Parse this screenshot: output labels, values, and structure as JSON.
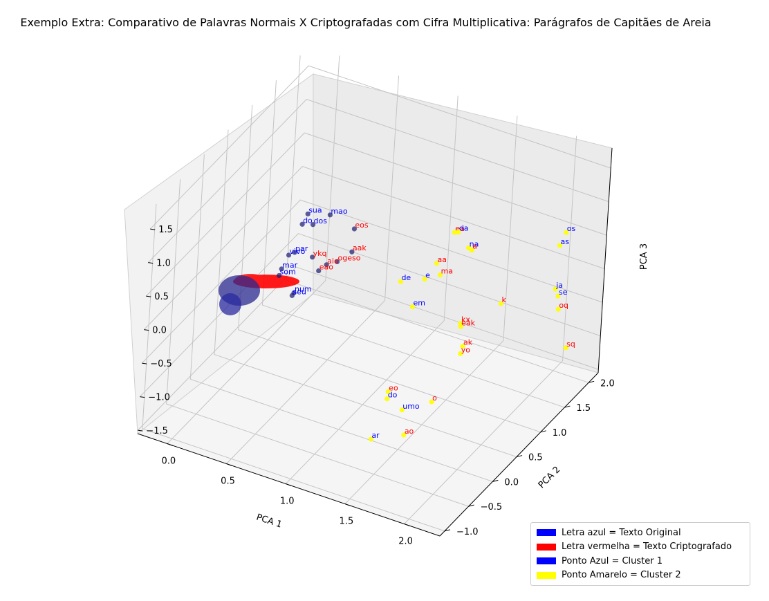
{
  "chart_data": {
    "type": "scatter",
    "projection": "3d",
    "title": "Exemplo Extra: Comparativo de Palavras Normais X Criptografadas com Cifra Multiplicativa: Parágrafos de Capitães de Areia",
    "xlabel": "PCA 1",
    "ylabel": "PCA 2",
    "zlabel": "PCA 3",
    "xticks": [
      "0.0",
      "0.5",
      "1.0",
      "1.5",
      "2.0"
    ],
    "yticks": [
      "−1.0",
      "−0.5",
      "0.0",
      "0.5",
      "1.0",
      "1.5",
      "2.0"
    ],
    "zticks": [
      "−1.5",
      "−1.0",
      "−0.5",
      "0.0",
      "0.5",
      "1.0",
      "1.5"
    ],
    "xlim": [
      -0.25,
      2.3
    ],
    "ylim": [
      -1.1,
      2.2
    ],
    "zlim": [
      -1.55,
      1.8
    ],
    "grid": true,
    "legend_position": "lower-right",
    "legend": [
      {
        "label": "Letra azul = Texto Original",
        "color": "#0000ff"
      },
      {
        "label": "Letra vermelha = Texto Criptografado",
        "color": "#ff0000"
      },
      {
        "label": "Ponto Azul = Cluster 1",
        "color": "#0000ff"
      },
      {
        "label": "Ponto Amarelo = Cluster 2",
        "color": "#ffff00"
      }
    ],
    "colors": {
      "original_text": "#0000ff",
      "encrypted_text": "#ff0000",
      "cluster1_point": "#191970",
      "cluster2_point": "#ffff00"
    },
    "points": [
      {
        "x": 1.32,
        "y": 1.45,
        "z": 0.51,
        "word": "ea",
        "cipher": true,
        "cluster": 2
      },
      {
        "x": 1.37,
        "y": 1.4,
        "z": 0.58,
        "word": "da",
        "cipher": false,
        "cluster": 2
      },
      {
        "x": 1.47,
        "y": 1.38,
        "z": 0.42,
        "word": "na",
        "cipher": false,
        "cluster": 2
      },
      {
        "x": 1.52,
        "y": 1.32,
        "z": 0.46,
        "word": "a",
        "cipher": true,
        "cluster": 2
      },
      {
        "x": 2.15,
        "y": 1.7,
        "z": 0.82,
        "word": "os",
        "cipher": false,
        "cluster": 2
      },
      {
        "x": 2.1,
        "y": 1.71,
        "z": 0.59,
        "word": "as",
        "cipher": false,
        "cluster": 2
      },
      {
        "x": 1.27,
        "y": 1.23,
        "z": 0.18,
        "word": "aa",
        "cipher": true,
        "cluster": 2
      },
      {
        "x": 1.29,
        "y": 1.27,
        "z": -0.01,
        "word": "ma",
        "cipher": true,
        "cluster": 2
      },
      {
        "x": 1.19,
        "y": 1.2,
        "z": -0.08,
        "word": "e",
        "cipher": false,
        "cluster": 2
      },
      {
        "x": 1.03,
        "y": 1.1,
        "z": -0.14,
        "word": "de",
        "cipher": false,
        "cluster": 2
      },
      {
        "x": 2.09,
        "y": 1.7,
        "z": -0.06,
        "word": "ja",
        "cipher": false,
        "cluster": 2
      },
      {
        "x": 2.13,
        "y": 1.66,
        "z": -0.11,
        "word": "se",
        "cipher": false,
        "cluster": 2
      },
      {
        "x": 1.14,
        "y": 1.1,
        "z": -0.45,
        "word": "em",
        "cipher": false,
        "cluster": 2
      },
      {
        "x": 1.74,
        "y": 1.45,
        "z": -0.3,
        "word": "k",
        "cipher": true,
        "cluster": 2
      },
      {
        "x": 1.52,
        "y": 1.17,
        "z": -0.52,
        "word": "kx",
        "cipher": true,
        "cluster": 2
      },
      {
        "x": 1.53,
        "y": 1.15,
        "z": -0.55,
        "word": "eak",
        "cipher": true,
        "cluster": 2
      },
      {
        "x": 2.12,
        "y": 1.71,
        "z": -0.35,
        "word": "oq",
        "cipher": true,
        "cluster": 2
      },
      {
        "x": 1.59,
        "y": 1.06,
        "z": -0.74,
        "word": "ak",
        "cipher": true,
        "cluster": 2
      },
      {
        "x": 1.59,
        "y": 1.02,
        "z": -0.82,
        "word": "yo",
        "cipher": true,
        "cluster": 2
      },
      {
        "x": 2.25,
        "y": 1.58,
        "z": -0.75,
        "word": "sq",
        "cipher": true,
        "cluster": 2
      },
      {
        "x": 1.51,
        "y": 0.66,
        "z": -1.32,
        "word": "o",
        "cipher": true,
        "cluster": 2
      },
      {
        "x": 1.16,
        "y": 0.62,
        "z": -1.35,
        "word": "eo",
        "cipher": true,
        "cluster": 2
      },
      {
        "x": 1.17,
        "y": 0.58,
        "z": -1.42,
        "word": "do",
        "cipher": false,
        "cluster": 2
      },
      {
        "x": 1.31,
        "y": 0.55,
        "z": -1.48,
        "word": "umo",
        "cipher": false,
        "cluster": 2
      },
      {
        "x": 1.46,
        "y": 0.22,
        "z": -1.52,
        "word": "ao",
        "cipher": true,
        "cluster": 2
      },
      {
        "x": 1.44,
        "y": -0.45,
        "z": -1.1,
        "word": "ar",
        "cipher": false,
        "cluster": 2
      },
      {
        "x": 0.31,
        "y": 0.88,
        "z": 0.6,
        "word": "sua",
        "cipher": false,
        "cluster": 1
      },
      {
        "x": 0.45,
        "y": 1.0,
        "z": 0.58,
        "word": "mao",
        "cipher": false,
        "cluster": 1
      },
      {
        "x": 0.28,
        "y": 0.85,
        "z": 0.45,
        "word": "do",
        "cipher": false,
        "cluster": 1
      },
      {
        "x": 0.35,
        "y": 0.9,
        "z": 0.45,
        "word": "dos",
        "cipher": false,
        "cluster": 1
      },
      {
        "x": 0.62,
        "y": 1.1,
        "z": 0.4,
        "word": "eos",
        "cipher": true,
        "cluster": 1
      },
      {
        "x": 0.63,
        "y": 1.05,
        "z": 0.1,
        "word": "aak",
        "cipher": true,
        "cluster": 1
      },
      {
        "x": 0.55,
        "y": 0.95,
        "z": -0.02,
        "word": "ogeso",
        "cipher": true,
        "cluster": 1
      },
      {
        "x": 0.49,
        "y": 0.88,
        "z": -0.05,
        "word": "aio",
        "cipher": true,
        "cluster": 1
      },
      {
        "x": 0.45,
        "y": 0.82,
        "z": -0.12,
        "word": "eao",
        "cipher": true,
        "cluster": 1
      },
      {
        "x": 0.38,
        "y": 0.85,
        "z": 0.02,
        "word": "ykq",
        "cipher": true,
        "cluster": 1
      },
      {
        "x": 0.25,
        "y": 0.8,
        "z": 0.05,
        "word": "par",
        "cipher": false,
        "cluster": 1
      },
      {
        "x": 0.21,
        "y": 0.78,
        "z": 0.0,
        "word": "vivo",
        "cipher": false,
        "cluster": 1
      },
      {
        "x": 0.18,
        "y": 0.72,
        "z": -0.18,
        "word": "mar",
        "cipher": false,
        "cluster": 1
      },
      {
        "x": 0.17,
        "y": 0.7,
        "z": -0.27,
        "word": "som",
        "cipher": false,
        "cluster": 1
      },
      {
        "x": 0.32,
        "y": 0.65,
        "z": -0.4,
        "word": "num",
        "cipher": false,
        "cluster": 1
      },
      {
        "x": 0.31,
        "y": 0.64,
        "z": -0.44,
        "word": "seu",
        "cipher": false,
        "cluster": 1
      }
    ]
  }
}
